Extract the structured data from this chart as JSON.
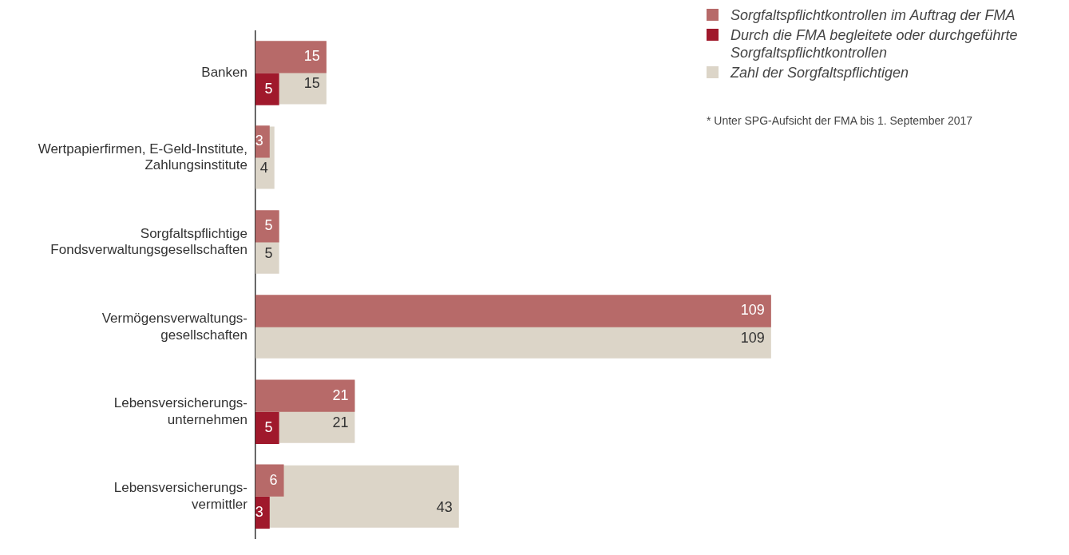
{
  "chart_data": {
    "type": "bar",
    "orientation": "horizontal",
    "categories": [
      "Banken",
      "Wertpapierfirmen, E-Geld-Institute,\nZahlungsinstitute",
      "Sorgfaltspflichtige\nFondsverwaltungsgesellschaften",
      "Vermögensverwaltungs-\ngesellschaften",
      "Lebensversicherungs-\nunternehmen",
      "Lebensversicherungs-\nvermittler"
    ],
    "series": [
      {
        "name": "Sorgfaltspflichtkontrollen im Auftrag der FMA",
        "color": "#b76a69",
        "values": [
          15,
          3,
          5,
          109,
          21,
          6
        ]
      },
      {
        "name": "Durch die FMA begleitete oder durchgeführte Sorgfaltspflichtkontrollen",
        "color": "#a0192c",
        "values": [
          5,
          null,
          null,
          null,
          5,
          3
        ]
      },
      {
        "name": "Zahl der Sorgfaltspflichtigen",
        "color": "#dcd5c8",
        "values": [
          15,
          4,
          5,
          109,
          21,
          43
        ]
      }
    ],
    "data_labels": true,
    "grid": false,
    "legend": "top right",
    "annotations": [
      "* Unter SPG-Aufsicht der FMA bis 1. September 2017"
    ]
  }
}
